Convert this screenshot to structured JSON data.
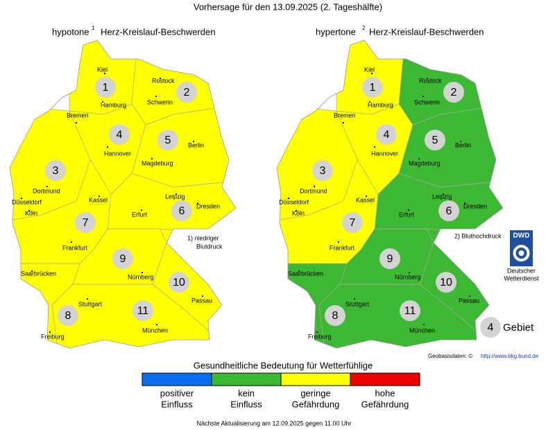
{
  "title": "Vorhersage für den 13.09.2025 (2. Tageshälfte)",
  "maps": [
    {
      "name": "hypotone",
      "superscript": "1",
      "subtitle": "Herz-Kreislauf-Beschwerden",
      "footnote": [
        "1) niedriger",
        "Blutdruck"
      ],
      "region_colors": [
        "#ffff00",
        "#ffff00",
        "#ffff00",
        "#ffff00",
        "#ffff00",
        "#ffff00",
        "#ffff00",
        "#ffff00",
        "#ffff00",
        "#ffff00",
        "#ffff00"
      ]
    },
    {
      "name": "hypertone",
      "superscript": "2",
      "subtitle": "Herz-Kreislauf-Beschwerden",
      "footnote": [
        "2) Bluthochdruck"
      ],
      "region_colors": [
        "#ffff00",
        "#3cb832",
        "#ffff00",
        "#ffff00",
        "#3cb832",
        "#3cb832",
        "#ffff00",
        "#3cb832",
        "#3cb832",
        "#3cb832",
        "#3cb832"
      ]
    }
  ],
  "regions": [
    "1",
    "2",
    "3",
    "4",
    "5",
    "6",
    "7",
    "8",
    "9",
    "10",
    "11"
  ],
  "cities": [
    "Kiel",
    "Rostock",
    "Hamburg",
    "Schwerin",
    "Bremen",
    "Hannover",
    "Berlin",
    "Magdeburg",
    "Dortmund",
    "Düsseldorf",
    "Köln",
    "Kassel",
    "Leipzig",
    "Dresden",
    "Erfurt",
    "Frankfurt",
    "Saarbrücken",
    "Nürnberg",
    "Stuttgart",
    "Passau",
    "Freiburg",
    "München"
  ],
  "logo": {
    "short": "DWD",
    "lines": [
      "Deutscher",
      "Wetterdienst"
    ]
  },
  "key": {
    "number": "4",
    "label": "Gebiet"
  },
  "source": {
    "label": "Geobasisdaten: ©",
    "link": "http://www.bkg.bund.de"
  },
  "legend": {
    "title": "Gesundheitliche Bedeutung für Wetterfühlige",
    "items": [
      {
        "lines": [
          "positiver",
          "Einfluss"
        ],
        "color": "#0a6ef0"
      },
      {
        "lines": [
          "kein",
          "Einfluss"
        ],
        "color": "#3cb832"
      },
      {
        "lines": [
          "geringe",
          "Gefährdung"
        ],
        "color": "#ffff00"
      },
      {
        "lines": [
          "hohe",
          "Gefährdung"
        ],
        "color": "#f00000"
      }
    ]
  },
  "footer": "Nächste Aktualisierung am 12.09.2025 gegen 11.00 Uhr"
}
